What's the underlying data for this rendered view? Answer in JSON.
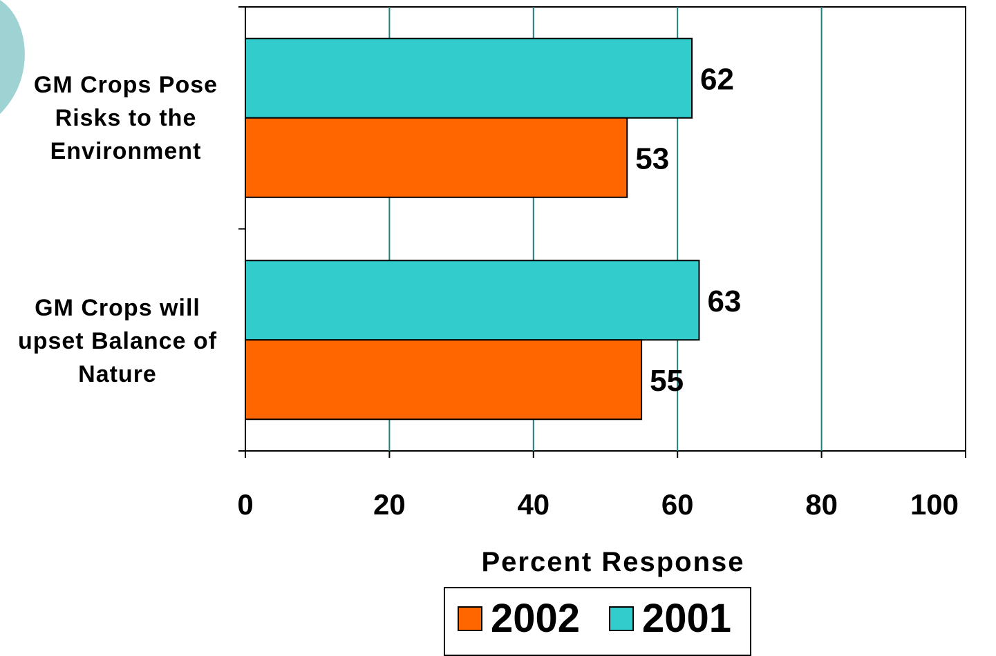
{
  "chart_data": {
    "type": "bar",
    "orientation": "horizontal",
    "categories": [
      "GM Crops Pose\nRisks to the\nEnvironment",
      "GM Crops will\nupset Balance of\nNature"
    ],
    "series": [
      {
        "name": "2001",
        "values": [
          62,
          63
        ],
        "color": "#33CCCC"
      },
      {
        "name": "2002",
        "values": [
          53,
          55
        ],
        "color": "#FF6600"
      }
    ],
    "xlabel": "Percent Response",
    "xlim": [
      0,
      100
    ],
    "xticks": [
      0,
      20,
      40,
      60,
      80,
      100
    ],
    "grid": "vertical",
    "legend": {
      "placement": "bottom",
      "order": [
        "2002",
        "2001"
      ]
    }
  },
  "decor": {
    "accent_color": "#9fd3d3",
    "gridline_color": "#1f7f7f"
  }
}
